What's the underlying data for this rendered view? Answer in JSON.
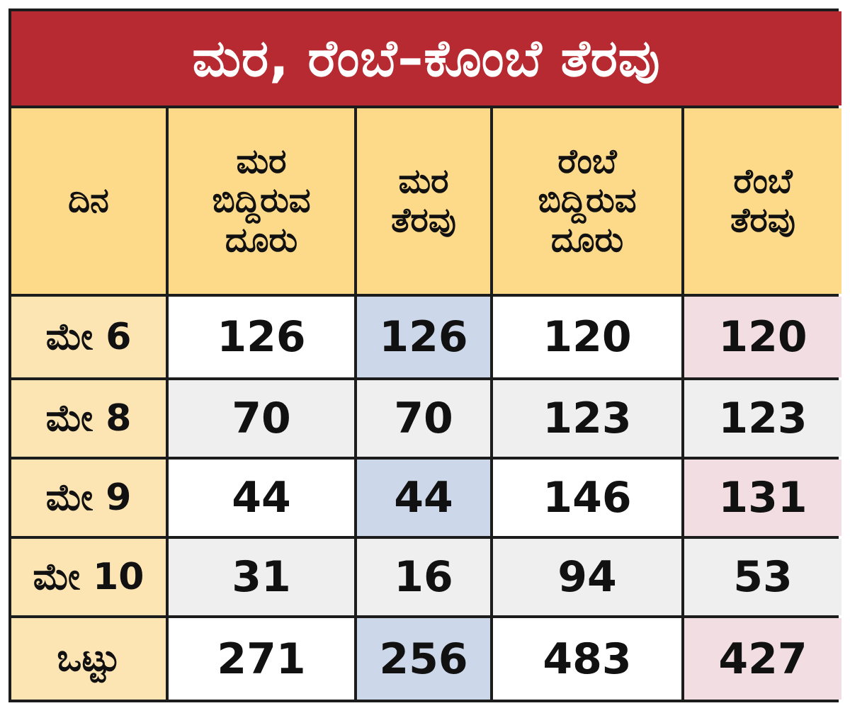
{
  "chart_data": {
    "type": "table",
    "title": "ಮರ, ರೆಂಬೆ–ಕೊಂಬೆ ತೆರವು",
    "columns": [
      "ದಿನ",
      "ಮರ\nಬಿದ್ದಿರುವ\nದೂರು",
      "ಮರ\nತೆರವು",
      "ರೆಂಬೆ\nಬಿದ್ದಿರುವ\nದೂರು",
      "ರೆಂಬೆ\nತೆರವು"
    ],
    "rows": [
      [
        "ಮೇ 6",
        "126",
        "126",
        "120",
        "120"
      ],
      [
        "ಮೇ 8",
        "70",
        "70",
        "123",
        "123"
      ],
      [
        "ಮೇ 9",
        "44",
        "44",
        "146",
        "131"
      ],
      [
        "ಮೇ 10",
        "31",
        "16",
        "94",
        "53"
      ],
      [
        "ಒಟ್ಟು",
        "271",
        "256",
        "483",
        "427"
      ]
    ]
  },
  "colors": {
    "title_bg": "#b82a31",
    "header_bg": "#fdd98a",
    "day_bg": "#fde4b3",
    "tree_cleared_bg": "#ccd8ea",
    "branch_cleared_bg": "#f1dde2",
    "grid": "#1c1c1c"
  }
}
